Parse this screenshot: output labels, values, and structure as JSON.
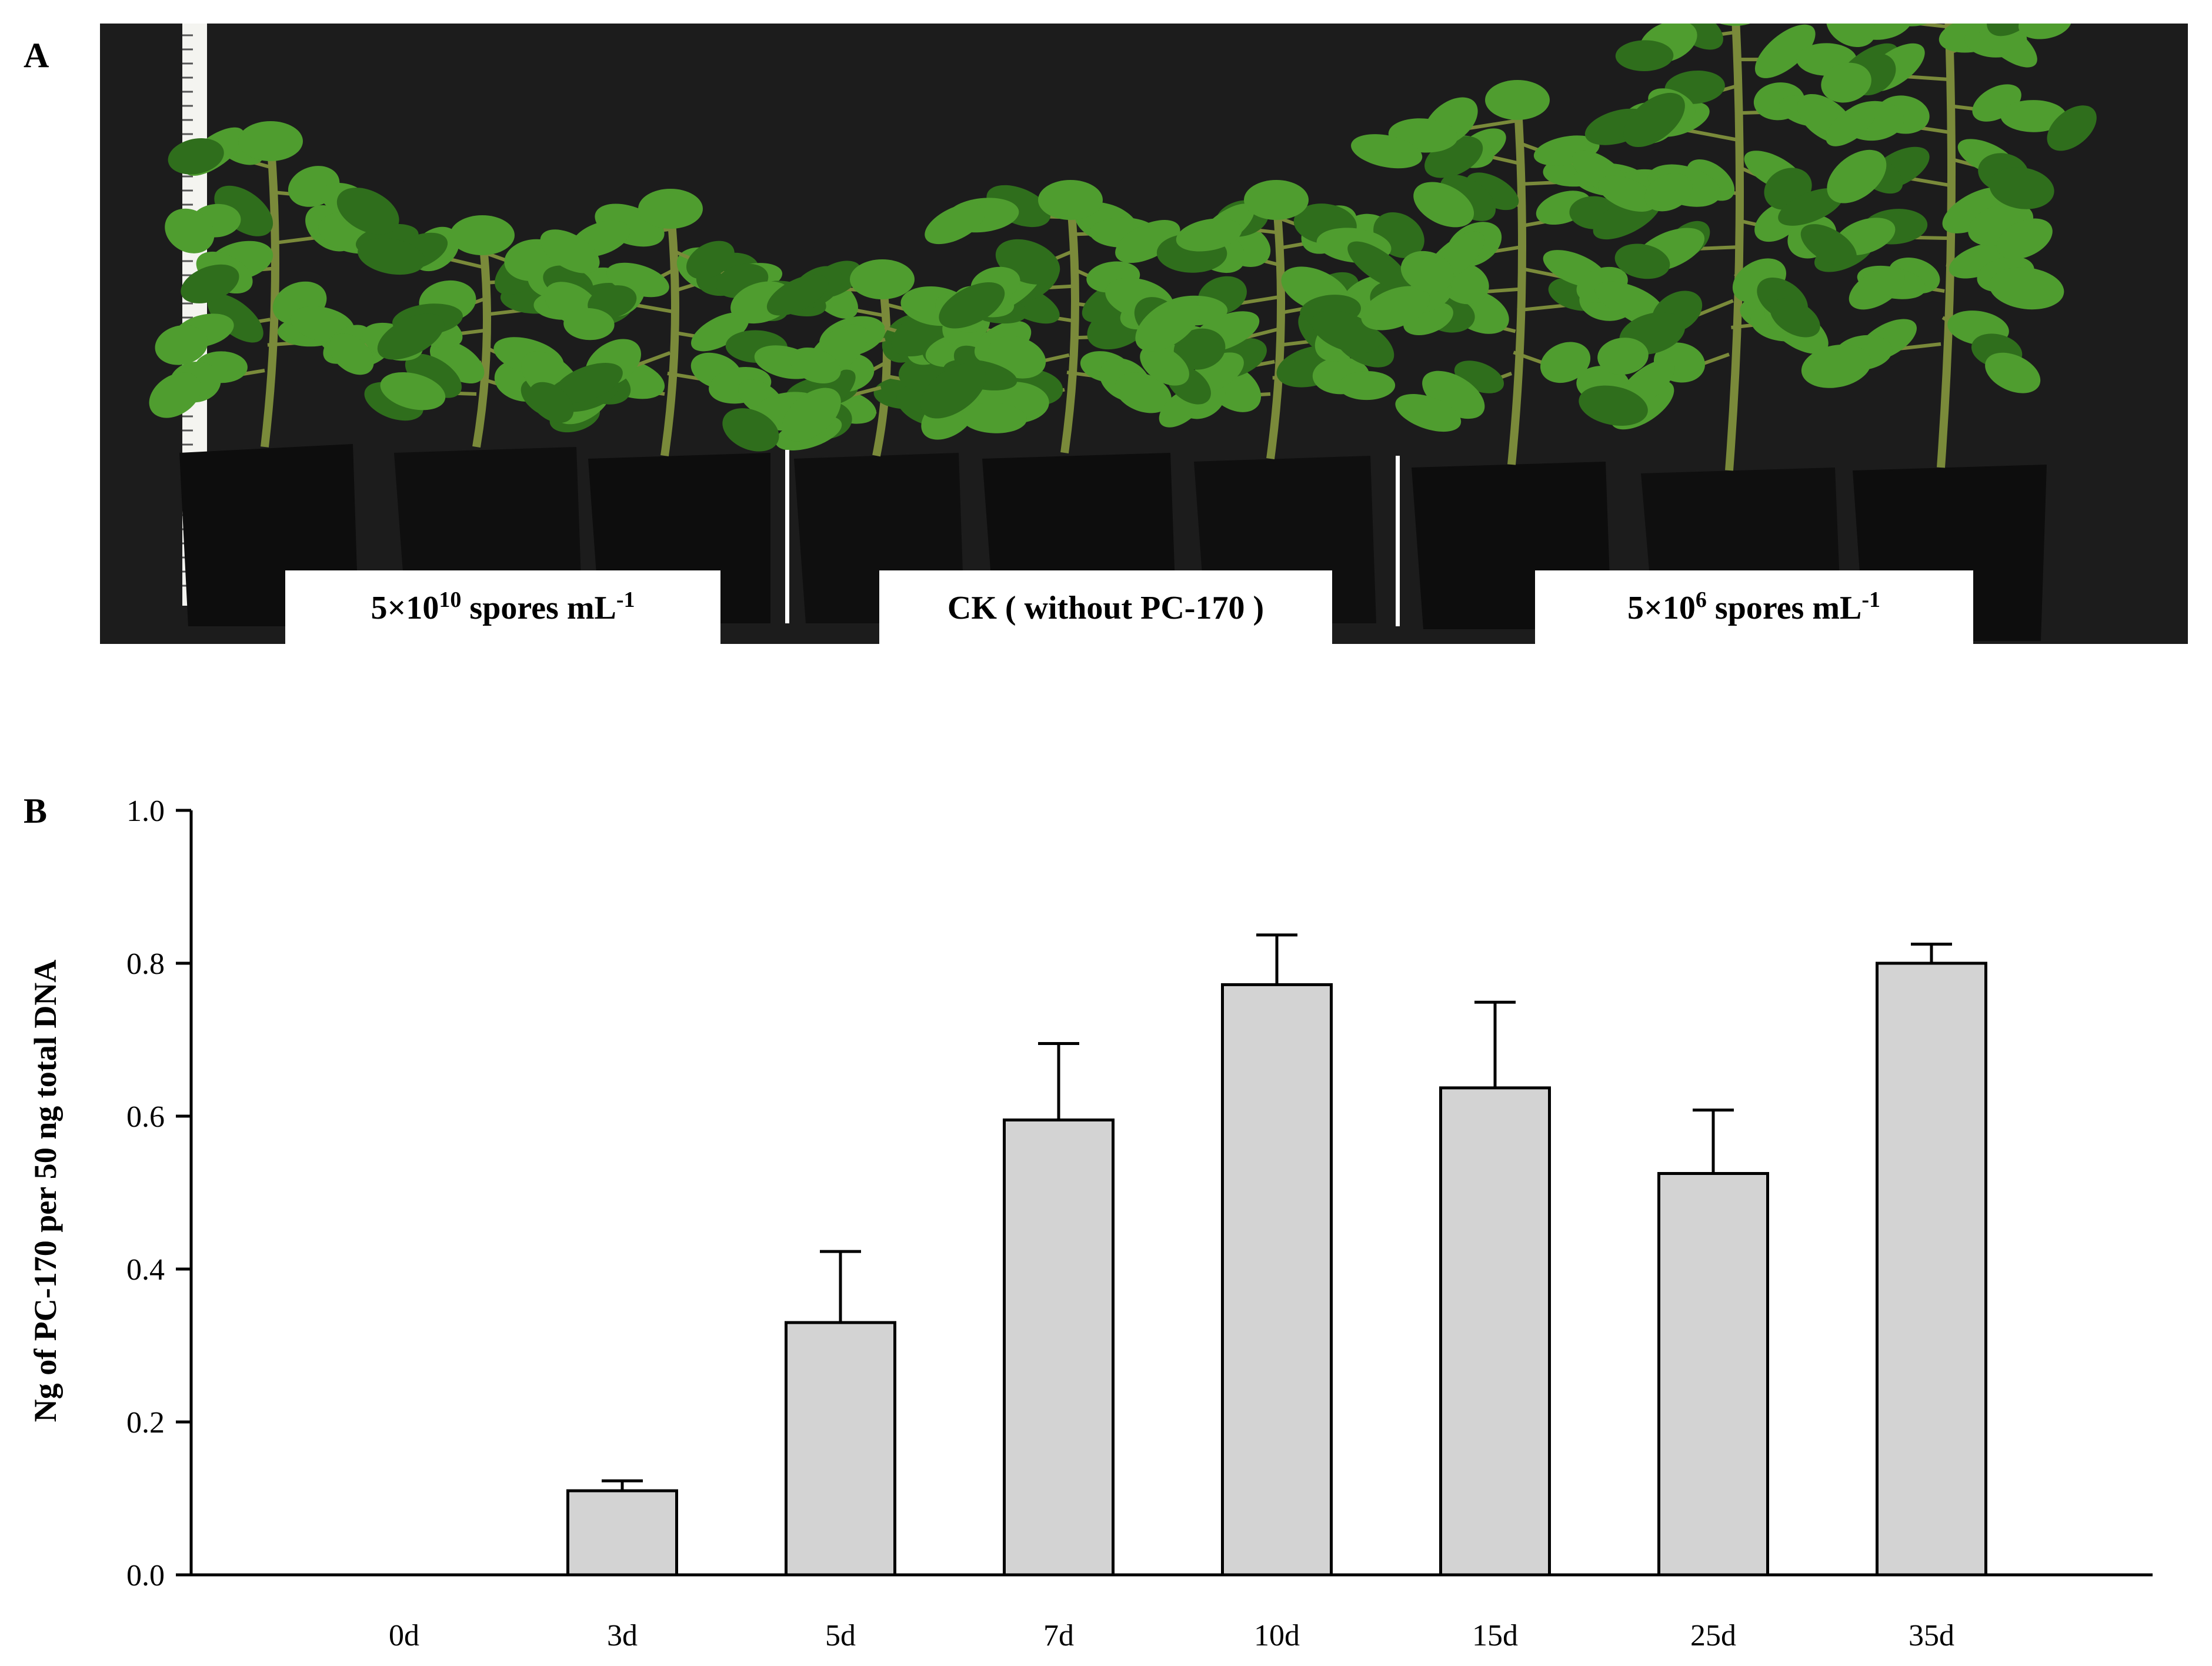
{
  "panels": {
    "a": "A",
    "b": "B"
  },
  "photo": {
    "labels": {
      "left": {
        "lead": "5×10",
        "exp": "10",
        "tail": " spores mL",
        "exp2": "-1"
      },
      "middle": "CK ( without PC-170 )",
      "right": {
        "lead": "5×10",
        "exp": "6",
        "tail": " spores mL",
        "exp2": "-1"
      }
    },
    "colors": {
      "background": "#1c1c1c",
      "pot": "#0d0d0d",
      "leaf": "#4f9d2f",
      "leaf_dark": "#2f6e1c",
      "stem": "#7a8a3a",
      "label_box": "#ffffff"
    }
  },
  "chart_data": {
    "type": "bar",
    "categories": [
      "0d",
      "3d",
      "5d",
      "7d",
      "10d",
      "15d",
      "25d",
      "35d"
    ],
    "values": [
      0,
      0.11,
      0.33,
      0.595,
      0.772,
      0.637,
      0.525,
      0.8
    ],
    "errors": [
      0,
      0.013,
      0.093,
      0.1,
      0.065,
      0.112,
      0.083,
      0.025
    ],
    "ylabel": "Ng of PC-170 per 50 ng total DNA",
    "xlabel": "",
    "ylim": [
      0,
      1.0
    ],
    "yticks": [
      "0.0",
      "0.2",
      "0.4",
      "0.6",
      "0.8",
      "1.0"
    ],
    "colors": {
      "bar_fill": "#d3d3d3",
      "bar_stroke": "#000000"
    }
  }
}
